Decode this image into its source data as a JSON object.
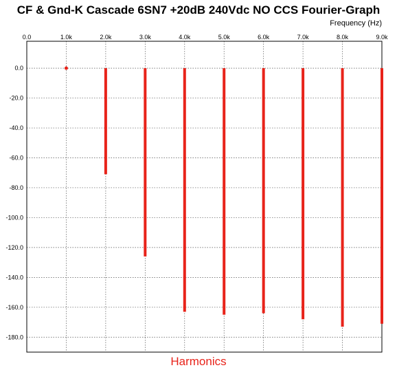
{
  "title": "CF & Gnd-K Cascade 6SN7 +20dB 240Vdc NO CCS Fourier-Graph",
  "footer": "Harmonics",
  "chart_data": {
    "type": "bar",
    "title": "CF & Gnd-K Cascade 6SN7 +20dB 240Vdc NO CCS Fourier-Graph",
    "xlabel": "Frequency  (Hz)",
    "ylabel": "",
    "xlim": [
      0,
      9000
    ],
    "ylim": [
      -190,
      18
    ],
    "x_ticks": [
      "0.0",
      "1.0k",
      "2.0k",
      "3.0k",
      "4.0k",
      "5.0k",
      "6.0k",
      "7.0k",
      "8.0k",
      "9.0k"
    ],
    "y_ticks": [
      "0.0",
      "-20.0",
      "-40.0",
      "-60.0",
      "-80.0",
      "-100.0",
      "-120.0",
      "-140.0",
      "-160.0",
      "-180.0"
    ],
    "grid": true,
    "bar_color": "#e8231a",
    "series": [
      {
        "x": [
          1000,
          2000,
          3000,
          4000,
          5000,
          6000,
          7000,
          8000,
          9000
        ],
        "values": [
          0,
          -71,
          -126,
          -163,
          -165,
          -164,
          -168,
          -173,
          -171
        ]
      }
    ]
  }
}
